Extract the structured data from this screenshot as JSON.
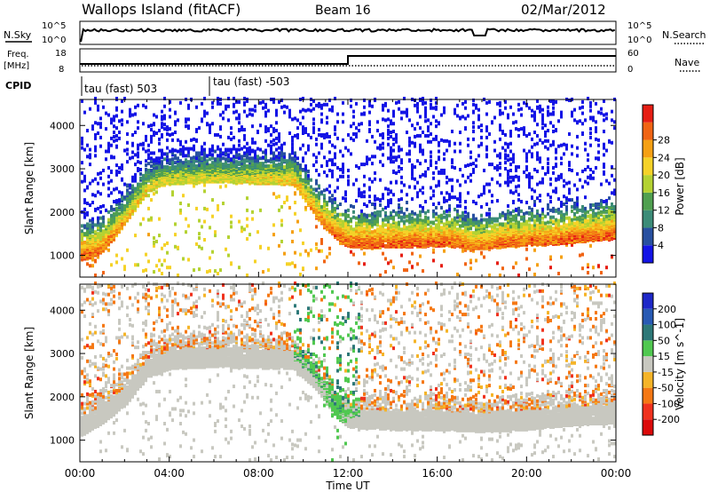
{
  "header": {
    "station": "Wallops Island (fitACF)",
    "beam": "Beam 16",
    "date": "02/Mar/2012"
  },
  "strips": {
    "nsky_label": "N.Sky",
    "nsearch_label": "N.Search",
    "freq_label_line1": "Freq.",
    "freq_label_line2": "[MHz]",
    "nave_label": "Nave",
    "cpid_label": "CPID",
    "nsky_ticks": [
      "10^5",
      "10^0"
    ],
    "nsearch_ticks": [
      "10^5",
      "10^0"
    ],
    "freq_ticks": [
      "18",
      "8"
    ],
    "nave_ticks": [
      "60",
      "0"
    ],
    "cpid_segments": [
      "tau (fast) 503",
      "tau (fast) -503"
    ]
  },
  "colors": {
    "power_scale": [
      "#1414e6",
      "#2850a0",
      "#3c8c78",
      "#50a050",
      "#b4d232",
      "#f5d228",
      "#f5a014",
      "#f06414",
      "#e61e14"
    ],
    "velocity_scale": [
      "#1e28c8",
      "#285ab4",
      "#2d7878",
      "#50c850",
      "#c8c8c0",
      "#f5b428",
      "#f57814",
      "#f0321e",
      "#dc0a0a"
    ]
  },
  "chart_data": [
    {
      "type": "heatmap",
      "panel": "power",
      "xlabel": "",
      "ylabel": "Slant Range [km]",
      "x_ticks": [
        "00:00",
        "04:00",
        "08:00",
        "12:00",
        "16:00",
        "20:00",
        "00:00"
      ],
      "x_range_hours": [
        0,
        24
      ],
      "ylim": [
        500,
        4600
      ],
      "y_ticks": [
        1000,
        2000,
        3000,
        4000
      ],
      "colorbar": {
        "label": "Power [dB]",
        "ticks": [
          4,
          8,
          12,
          16,
          20,
          24,
          28
        ]
      },
      "band": {
        "hours": [
          0.0,
          0.5,
          1.0,
          1.5,
          2.0,
          2.5,
          3.0,
          3.5,
          4.0,
          5.0,
          6.0,
          7.0,
          8.0,
          9.0,
          9.5,
          10.0,
          10.5,
          11.0,
          11.5,
          12.0,
          13.0,
          14.0,
          15.0,
          16.0,
          17.0,
          17.5,
          18.0,
          19.0,
          20.0,
          21.0,
          22.0,
          23.0,
          24.0
        ],
        "range_km": [
          1000,
          1050,
          1200,
          1500,
          1850,
          2200,
          2550,
          2700,
          2750,
          2780,
          2800,
          2780,
          2760,
          2750,
          2750,
          2400,
          2000,
          1700,
          1450,
          1300,
          1280,
          1300,
          1300,
          1320,
          1300,
          1200,
          1250,
          1300,
          1350,
          1350,
          1400,
          1450,
          1500
        ],
        "power_db": [
          30,
          29,
          28,
          26,
          24,
          22,
          21,
          20,
          20,
          20,
          20,
          20,
          21,
          22,
          23,
          24,
          26,
          28,
          29,
          30,
          30,
          30,
          30,
          30,
          29,
          28,
          28,
          29,
          29,
          29,
          30,
          30,
          30
        ]
      }
    },
    {
      "type": "heatmap",
      "panel": "velocity",
      "xlabel": "Time UT",
      "ylabel": "Slant Range [km]",
      "x_ticks": [
        "00:00",
        "04:00",
        "08:00",
        "12:00",
        "16:00",
        "20:00",
        "00:00"
      ],
      "x_range_hours": [
        0,
        24
      ],
      "ylim": [
        500,
        4600
      ],
      "y_ticks": [
        1000,
        2000,
        3000,
        4000
      ],
      "colorbar": {
        "label": "Velocity [m s^-1]",
        "ticks": [
          200,
          100,
          50,
          15,
          -15,
          -50,
          -100,
          -200
        ]
      },
      "band": {
        "hours": [
          0.0,
          1.0,
          2.0,
          3.0,
          4.0,
          6.0,
          8.0,
          9.5,
          10.5,
          11.5,
          12.0,
          14.0,
          16.0,
          18.0,
          20.0,
          22.0,
          24.0
        ],
        "range_km": [
          1200,
          1500,
          1900,
          2550,
          2750,
          2800,
          2770,
          2750,
          2300,
          1600,
          1400,
          1350,
          1350,
          1300,
          1350,
          1450,
          1500
        ],
        "velocity_ms": [
          0,
          0,
          0,
          0,
          0,
          0,
          0,
          0,
          0,
          30,
          0,
          0,
          0,
          0,
          0,
          0,
          0
        ]
      }
    }
  ]
}
